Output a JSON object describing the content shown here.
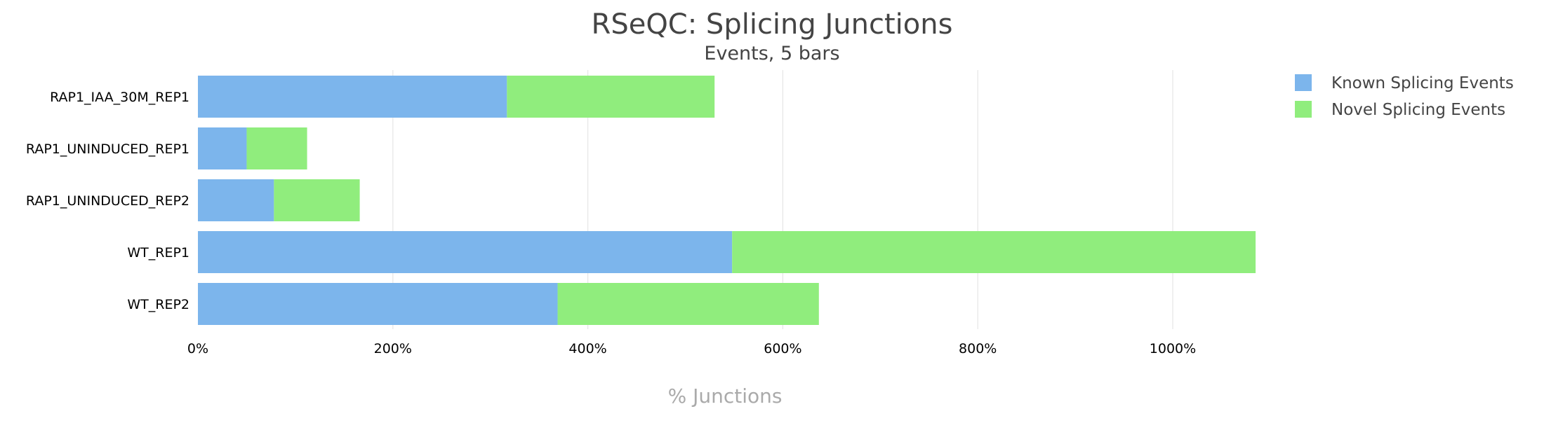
{
  "chart_data": {
    "type": "bar",
    "orientation": "horizontal",
    "stacked": true,
    "title": "RSeQC: Splicing Junctions",
    "subtitle": "Events, 5 bars",
    "xlabel": "% Junctions",
    "ylabel": "",
    "xlim": [
      0,
      1100
    ],
    "xticks": [
      0,
      200,
      400,
      600,
      800,
      1000
    ],
    "xtick_labels": [
      "0%",
      "200%",
      "400%",
      "600%",
      "800%",
      "1000%"
    ],
    "grid": true,
    "legend_position": "top-right",
    "categories": [
      "RAP1_IAA_30M_REP1",
      "RAP1_UNINDUCED_REP1",
      "RAP1_UNINDUCED_REP2",
      "WT_REP1",
      "WT_REP2"
    ],
    "series": [
      {
        "name": "Known Splicing Events",
        "color": "#7cb5ec",
        "values": [
          317,
          50,
          78,
          548,
          369
        ]
      },
      {
        "name": "Novel Splicing Events",
        "color": "#90ed7d",
        "values": [
          213,
          62,
          88,
          537,
          268
        ]
      }
    ]
  }
}
